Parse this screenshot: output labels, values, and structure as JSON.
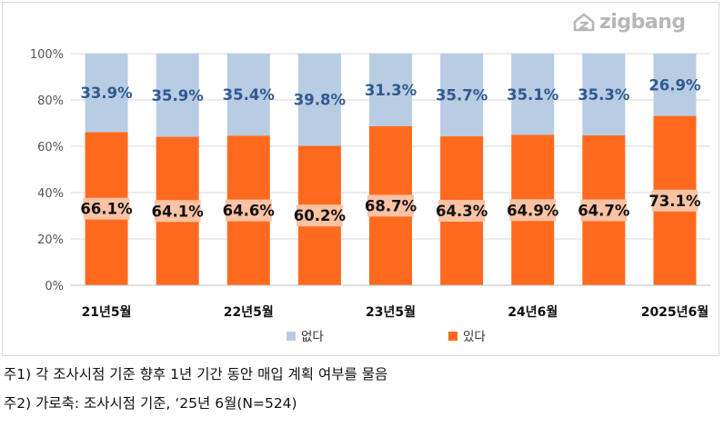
{
  "brand": {
    "logo_text": "zigbang",
    "logo_icon": "zigbang-logo-icon"
  },
  "chart_data": {
    "type": "bar",
    "stacked": true,
    "categories": [
      "21년5월",
      "",
      "22년5월",
      "",
      "23년5월",
      "",
      "24년6월",
      "",
      "2025년6월"
    ],
    "series": [
      {
        "name": "있다",
        "color": "#FF6A1F",
        "values": [
          66.1,
          64.1,
          64.6,
          60.2,
          68.7,
          64.3,
          64.9,
          64.7,
          73.1
        ],
        "labels": [
          "66.1%",
          "64.1%",
          "64.6%",
          "60.2%",
          "68.7%",
          "64.3%",
          "64.9%",
          "64.7%",
          "73.1%"
        ]
      },
      {
        "name": "없다",
        "color": "#B8CCE4",
        "values": [
          33.9,
          35.9,
          35.4,
          39.8,
          31.3,
          35.7,
          35.1,
          35.3,
          26.9
        ],
        "labels": [
          "33.9%",
          "35.9%",
          "35.4%",
          "39.8%",
          "31.3%",
          "35.7%",
          "35.1%",
          "35.3%",
          "26.9%"
        ]
      }
    ],
    "ylim": [
      0,
      100
    ],
    "yticks": [
      0,
      20,
      40,
      60,
      80,
      100
    ],
    "ytick_labels": [
      "0%",
      "20%",
      "40%",
      "60%",
      "80%",
      "100%"
    ],
    "grid": true,
    "legend": [
      "없다",
      "있다"
    ],
    "legend_position": "bottom"
  },
  "notes": [
    "주1) 각 조사시점 기준 향후 1년 기간 동안 매입 계획 여부를 물음",
    "주2) 가로축: 조사시점 기준, ‘25년 6월(N=524)"
  ]
}
